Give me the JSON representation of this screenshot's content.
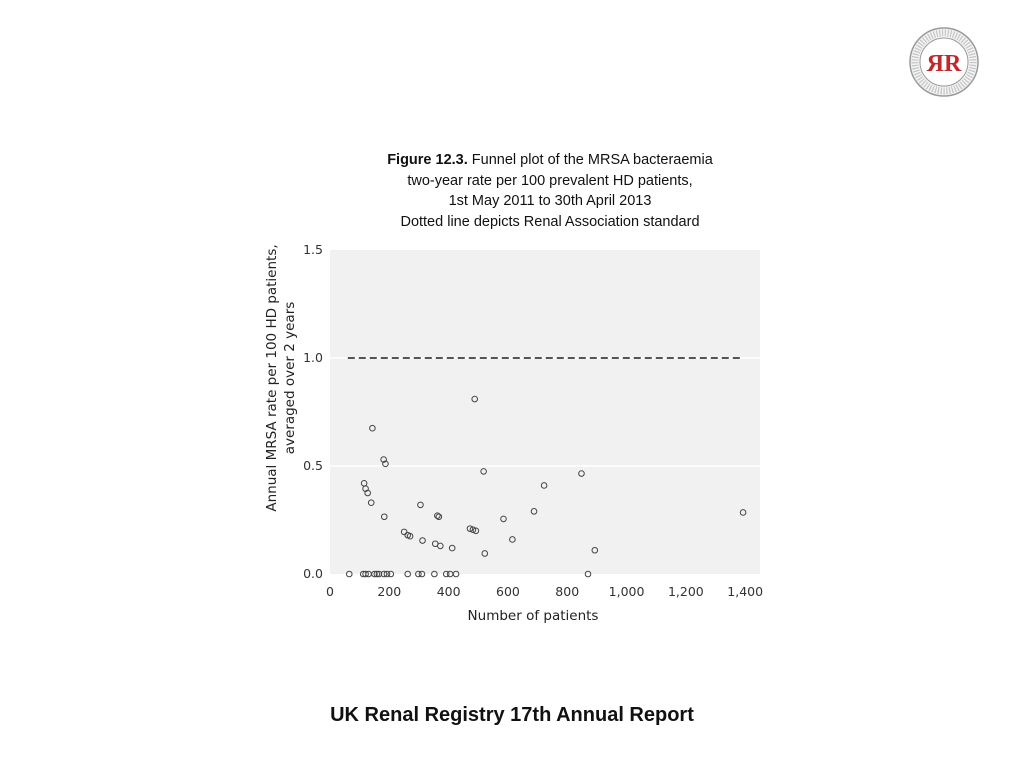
{
  "caption": {
    "figure_label": "Figure 12.3.",
    "line1_rest": " Funnel plot of the MRSA bacteraemia",
    "line2": "two-year rate per 100 prevalent HD patients,",
    "line3": "1st May 2011 to 30th April 2013",
    "line4": "Dotted line depicts Renal Association standard"
  },
  "footer": {
    "title": "UK Renal Registry 17th Annual Report"
  },
  "logo": {
    "letters": "ЯR",
    "ring_text": "RENAL ASSOCIATION · UK RENAL REGISTRY"
  },
  "colors": {
    "plot_bg": "#f1f1f1",
    "gridline": "#ffffff",
    "marker": "#444444",
    "standard_line": "#555555"
  },
  "chart_data": {
    "type": "scatter",
    "xlabel": "Number of patients",
    "ylabel_line1": "Annual MRSA rate per 100 HD patients,",
    "ylabel_line2": "averaged over 2 years",
    "xlim": [
      0,
      1450
    ],
    "ylim": [
      0,
      1.5
    ],
    "x_ticks": [
      0,
      200,
      400,
      600,
      800,
      1000,
      1200,
      1400
    ],
    "x_tick_labels": [
      "0",
      "200",
      "400",
      "600",
      "800",
      "1,000",
      "1,200",
      "1,400"
    ],
    "y_ticks": [
      0,
      0.5,
      1.0,
      1.5
    ],
    "y_tick_labels": [
      "0.0",
      "0.5",
      "1.0",
      "1.5"
    ],
    "grid": true,
    "reference_line": {
      "y": 1.0,
      "x_from": 60,
      "x_to": 1390,
      "style": "dashed"
    },
    "points": [
      {
        "x": 65,
        "y": 0.0
      },
      {
        "x": 112,
        "y": 0.0
      },
      {
        "x": 120,
        "y": 0.0
      },
      {
        "x": 130,
        "y": 0.0
      },
      {
        "x": 150,
        "y": 0.0
      },
      {
        "x": 158,
        "y": 0.0
      },
      {
        "x": 165,
        "y": 0.0
      },
      {
        "x": 182,
        "y": 0.0
      },
      {
        "x": 192,
        "y": 0.0
      },
      {
        "x": 205,
        "y": 0.0
      },
      {
        "x": 262,
        "y": 0.0
      },
      {
        "x": 298,
        "y": 0.0
      },
      {
        "x": 310,
        "y": 0.0
      },
      {
        "x": 352,
        "y": 0.0
      },
      {
        "x": 392,
        "y": 0.0
      },
      {
        "x": 405,
        "y": 0.0
      },
      {
        "x": 425,
        "y": 0.0
      },
      {
        "x": 870,
        "y": 0.0
      },
      {
        "x": 115,
        "y": 0.42
      },
      {
        "x": 120,
        "y": 0.395
      },
      {
        "x": 127,
        "y": 0.375
      },
      {
        "x": 139,
        "y": 0.33
      },
      {
        "x": 143,
        "y": 0.675
      },
      {
        "x": 181,
        "y": 0.53
      },
      {
        "x": 187,
        "y": 0.51
      },
      {
        "x": 183,
        "y": 0.265
      },
      {
        "x": 250,
        "y": 0.195
      },
      {
        "x": 262,
        "y": 0.18
      },
      {
        "x": 270,
        "y": 0.175
      },
      {
        "x": 305,
        "y": 0.32
      },
      {
        "x": 312,
        "y": 0.155
      },
      {
        "x": 355,
        "y": 0.14
      },
      {
        "x": 362,
        "y": 0.27
      },
      {
        "x": 367,
        "y": 0.265
      },
      {
        "x": 372,
        "y": 0.13
      },
      {
        "x": 412,
        "y": 0.12
      },
      {
        "x": 472,
        "y": 0.21
      },
      {
        "x": 482,
        "y": 0.205
      },
      {
        "x": 492,
        "y": 0.2
      },
      {
        "x": 488,
        "y": 0.81
      },
      {
        "x": 518,
        "y": 0.475
      },
      {
        "x": 522,
        "y": 0.095
      },
      {
        "x": 585,
        "y": 0.255
      },
      {
        "x": 615,
        "y": 0.16
      },
      {
        "x": 688,
        "y": 0.29
      },
      {
        "x": 722,
        "y": 0.41
      },
      {
        "x": 848,
        "y": 0.465
      },
      {
        "x": 893,
        "y": 0.11
      },
      {
        "x": 1393,
        "y": 0.285
      }
    ]
  }
}
